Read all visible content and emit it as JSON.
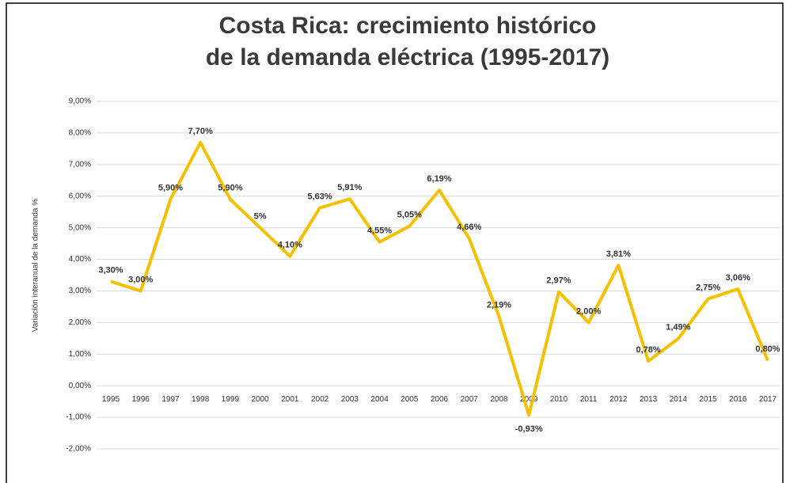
{
  "chart_data": {
    "type": "line",
    "title_lines": [
      "Costa Rica: crecimiento histórico",
      "de la demanda eléctrica (1995-2017)"
    ],
    "y_label": "Variación interanual de la demanda %",
    "categories": [
      "1995",
      "1996",
      "1997",
      "1998",
      "1999",
      "2000",
      "2001",
      "2002",
      "2003",
      "2004",
      "2005",
      "2006",
      "2007",
      "2008",
      "2009",
      "2010",
      "2011",
      "2012",
      "2013",
      "2014",
      "2015",
      "2016",
      "2017"
    ],
    "series": [
      {
        "name": "Variación",
        "color": "#f5c000",
        "values": [
          3.3,
          3.0,
          5.9,
          7.7,
          5.9,
          5,
          4.1,
          5.63,
          5.91,
          4.55,
          5.05,
          6.19,
          4.66,
          2.19,
          -0.93,
          2.97,
          2.0,
          3.81,
          0.78,
          1.49,
          2.75,
          3.06,
          0.8
        ],
        "value_labels": [
          "3,30%",
          "3,00%",
          "5,90%",
          "7,70%",
          "5,90%",
          "5%",
          "4,10%",
          "5,63%",
          "5,91%",
          "4,55%",
          "5,05%",
          "6,19%",
          "4,66%",
          "2,19%",
          "-0,93%",
          "2,97%",
          "2,00%",
          "3,81%",
          "0,78%",
          "1,49%",
          "2,75%",
          "3,06%",
          "0,80%"
        ]
      }
    ],
    "ylim": [
      -2,
      9
    ],
    "yticks": [
      {
        "value": -2,
        "label": "-2,00%"
      },
      {
        "value": -1,
        "label": "-1,00%"
      },
      {
        "value": 0,
        "label": "0,00%"
      },
      {
        "value": 1,
        "label": "1,00%"
      },
      {
        "value": 2,
        "label": "2,00%"
      },
      {
        "value": 3,
        "label": "3,00%"
      },
      {
        "value": 4,
        "label": "4,00%"
      },
      {
        "value": 5,
        "label": "5,00%"
      },
      {
        "value": 6,
        "label": "6,00%"
      },
      {
        "value": 7,
        "label": "7,00%"
      },
      {
        "value": 8,
        "label": "8,00%"
      },
      {
        "value": 9,
        "label": "9,00%"
      }
    ],
    "grid": true
  }
}
